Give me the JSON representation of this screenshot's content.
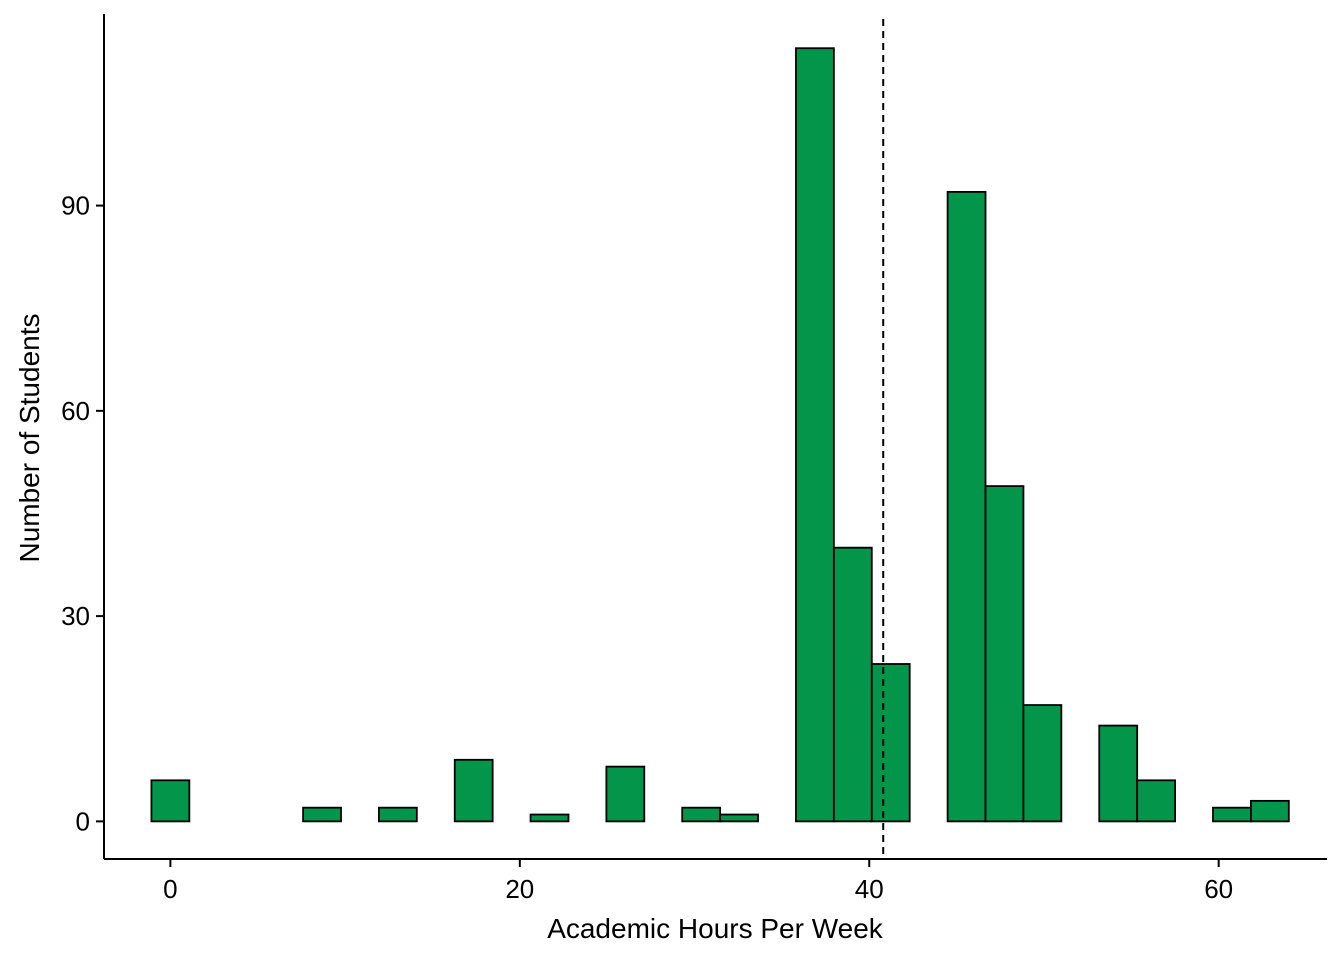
{
  "chart_data": {
    "type": "bar",
    "title": "",
    "xlabel": "Academic Hours Per Week",
    "ylabel": "Number of Students",
    "xlim": [
      -3.8,
      66.2
    ],
    "ylim": [
      -5.5,
      118
    ],
    "x_ticks": [
      0,
      20,
      40,
      60
    ],
    "y_ticks": [
      0,
      30,
      60,
      90
    ],
    "bin_width": 2.17,
    "bins": [
      {
        "x": 0.0,
        "count": 6
      },
      {
        "x": 2.17,
        "count": 0
      },
      {
        "x": 4.34,
        "count": 0
      },
      {
        "x": 6.51,
        "count": 0
      },
      {
        "x": 8.68,
        "count": 2
      },
      {
        "x": 10.85,
        "count": 0
      },
      {
        "x": 13.02,
        "count": 2
      },
      {
        "x": 15.19,
        "count": 0
      },
      {
        "x": 17.36,
        "count": 9
      },
      {
        "x": 19.53,
        "count": 0
      },
      {
        "x": 21.7,
        "count": 1
      },
      {
        "x": 23.87,
        "count": 0
      },
      {
        "x": 26.04,
        "count": 8
      },
      {
        "x": 28.21,
        "count": 0
      },
      {
        "x": 30.38,
        "count": 2
      },
      {
        "x": 32.55,
        "count": 1
      },
      {
        "x": 34.72,
        "count": 0
      },
      {
        "x": 36.89,
        "count": 113
      },
      {
        "x": 39.06,
        "count": 40
      },
      {
        "x": 41.23,
        "count": 23
      },
      {
        "x": 43.4,
        "count": 0
      },
      {
        "x": 45.57,
        "count": 92
      },
      {
        "x": 47.74,
        "count": 49
      },
      {
        "x": 49.91,
        "count": 17
      },
      {
        "x": 52.08,
        "count": 0
      },
      {
        "x": 54.25,
        "count": 14
      },
      {
        "x": 56.42,
        "count": 6
      },
      {
        "x": 58.59,
        "count": 0
      },
      {
        "x": 60.76,
        "count": 2
      },
      {
        "x": 62.93,
        "count": 3
      }
    ],
    "mean_line_x": 40.8,
    "colors": {
      "bar_fill": "#03964B",
      "bar_stroke": "#000000",
      "mean_line": "#000000"
    }
  }
}
